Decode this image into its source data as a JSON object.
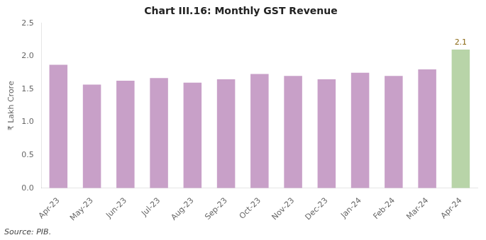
{
  "chart_data": {
    "type": "bar",
    "title": "Chart III.16: Monthly GST Revenue",
    "categories": [
      "Apr-23",
      "May-23",
      "Jun-23",
      "Jul-23",
      "Aug-23",
      "Sep-23",
      "Oct-23",
      "Nov-23",
      "Dec-23",
      "Jan-24",
      "Feb-24",
      "Mar-24",
      "Apr-24"
    ],
    "values": [
      1.87,
      1.57,
      1.63,
      1.67,
      1.6,
      1.65,
      1.73,
      1.7,
      1.65,
      1.75,
      1.7,
      1.8,
      2.1
    ],
    "colors": [
      "#c8a0c8",
      "#c8a0c8",
      "#c8a0c8",
      "#c8a0c8",
      "#c8a0c8",
      "#c8a0c8",
      "#c8a0c8",
      "#c8a0c8",
      "#c8a0c8",
      "#c8a0c8",
      "#c8a0c8",
      "#c8a0c8",
      "#b8d4a8"
    ],
    "ylabel": "₹ Lakh Crore",
    "ylim": [
      0,
      2.5
    ],
    "yticks": [
      {
        "value": 0,
        "label": "0.0"
      },
      0.5,
      {
        "value": 1,
        "label": "1.0"
      },
      1.5,
      {
        "value": 2,
        "label": "2.0"
      },
      2.5
    ],
    "annotations": [
      {
        "text": "2.1",
        "category": "Apr-24",
        "value": 2.1,
        "color": "#8B6914"
      }
    ],
    "source": "Source: PIB.",
    "grid": false
  }
}
